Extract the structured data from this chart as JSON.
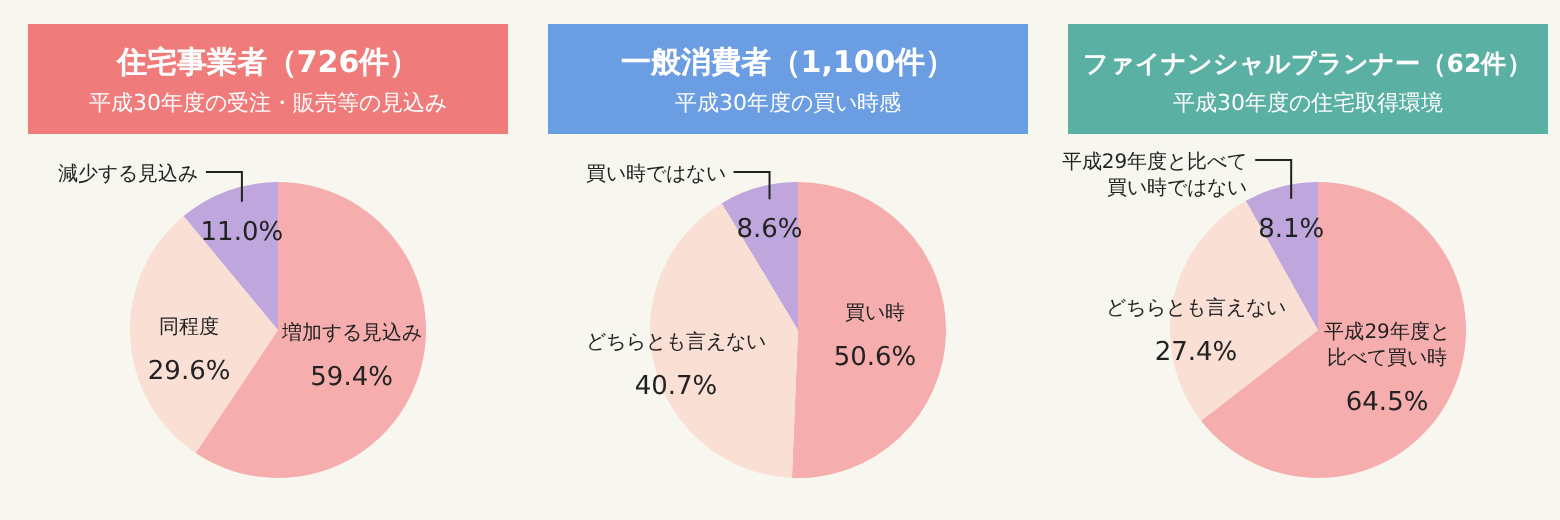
{
  "chart_data": [
    {
      "type": "pie",
      "title": "住宅事業者（726件）",
      "subtitle": "平成30年度の受注・販売等の見込み",
      "categories": [
        "増加する見込み",
        "同程度",
        "減少する見込み"
      ],
      "values": [
        59.4,
        29.6,
        11.0
      ],
      "value_labels": [
        "59.4%",
        "29.6%",
        "11.0%"
      ],
      "colors": [
        "#f5adad",
        "#f9dfd4",
        "#bfa6dc"
      ]
    },
    {
      "type": "pie",
      "title": "一般消費者（1,100件）",
      "subtitle": "平成30年度の買い時感",
      "categories": [
        "買い時",
        "どちらとも言えない",
        "買い時ではない"
      ],
      "values": [
        50.6,
        40.7,
        8.6
      ],
      "value_labels": [
        "50.6%",
        "40.7%",
        "8.6%"
      ],
      "colors": [
        "#f5adad",
        "#f9dfd4",
        "#bfa6dc"
      ]
    },
    {
      "type": "pie",
      "title": "ファイナンシャルプランナー（62件）",
      "subtitle": "平成30年度の住宅取得環境",
      "categories": [
        "平成29年度と比べて買い時",
        "どちらとも言えない",
        "平成29年度と比べて買い時ではない"
      ],
      "values": [
        64.5,
        27.4,
        8.1
      ],
      "value_labels": [
        "64.5%",
        "27.4%",
        "8.1%"
      ],
      "colors": [
        "#f5adad",
        "#f9dfd4",
        "#bfa6dc"
      ]
    }
  ]
}
